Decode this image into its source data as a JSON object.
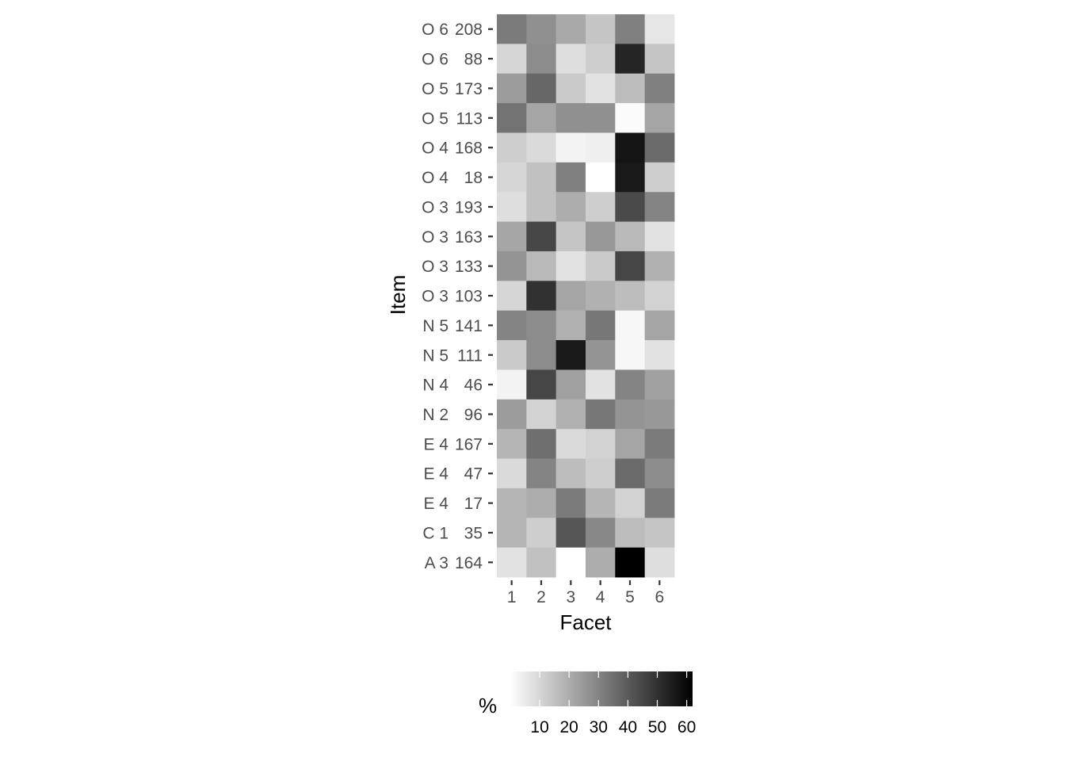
{
  "chart_data": {
    "type": "heatmap",
    "title": "",
    "xlabel": "Facet",
    "ylabel": "Item",
    "x_categories": [
      "1",
      "2",
      "3",
      "4",
      "5",
      "6"
    ],
    "y_categories": [
      [
        "O 6",
        "208"
      ],
      [
        "O 6",
        "88"
      ],
      [
        "O 5",
        "173"
      ],
      [
        "O 5",
        "113"
      ],
      [
        "O 4",
        "168"
      ],
      [
        "O 4",
        "18"
      ],
      [
        "O 3",
        "193"
      ],
      [
        "O 3",
        "163"
      ],
      [
        "O 3",
        "133"
      ],
      [
        "O 3",
        "103"
      ],
      [
        "N 5",
        "141"
      ],
      [
        "N 5",
        "111"
      ],
      [
        "N 4",
        "46"
      ],
      [
        "N 2",
        "96"
      ],
      [
        "E 4",
        "167"
      ],
      [
        "E 4",
        "47"
      ],
      [
        "E 4",
        "17"
      ],
      [
        "C 1",
        "35"
      ],
      [
        "A 3",
        "164"
      ]
    ],
    "values": [
      [
        32,
        27,
        21,
        14,
        31,
        6
      ],
      [
        10,
        28,
        8,
        12,
        53,
        14
      ],
      [
        24,
        37,
        13,
        7,
        16,
        31
      ],
      [
        34,
        22,
        27,
        27,
        1,
        22
      ],
      [
        12,
        9,
        3,
        4,
        57,
        36
      ],
      [
        10,
        15,
        31,
        0,
        56,
        12
      ],
      [
        8,
        15,
        20,
        12,
        44,
        30
      ],
      [
        22,
        45,
        14,
        25,
        17,
        7
      ],
      [
        26,
        17,
        7,
        13,
        45,
        19
      ],
      [
        10,
        50,
        22,
        19,
        16,
        11
      ],
      [
        30,
        28,
        19,
        33,
        2,
        22
      ],
      [
        13,
        28,
        56,
        26,
        2,
        7
      ],
      [
        3,
        45,
        23,
        7,
        30,
        23
      ],
      [
        24,
        11,
        19,
        33,
        26,
        25
      ],
      [
        18,
        35,
        9,
        11,
        22,
        32
      ],
      [
        9,
        30,
        16,
        12,
        36,
        28
      ],
      [
        18,
        20,
        32,
        18,
        11,
        32
      ],
      [
        18,
        12,
        41,
        29,
        16,
        14
      ],
      [
        7,
        15,
        0,
        20,
        62,
        8
      ]
    ],
    "value_unit": "%",
    "color_scale": {
      "low": "#ffffff",
      "high": "#000000",
      "domain": [
        0,
        62
      ]
    },
    "grid": false,
    "legend": {
      "title": "%",
      "position": "bottom",
      "ticks": [
        10,
        20,
        30,
        40,
        50,
        60
      ]
    }
  }
}
